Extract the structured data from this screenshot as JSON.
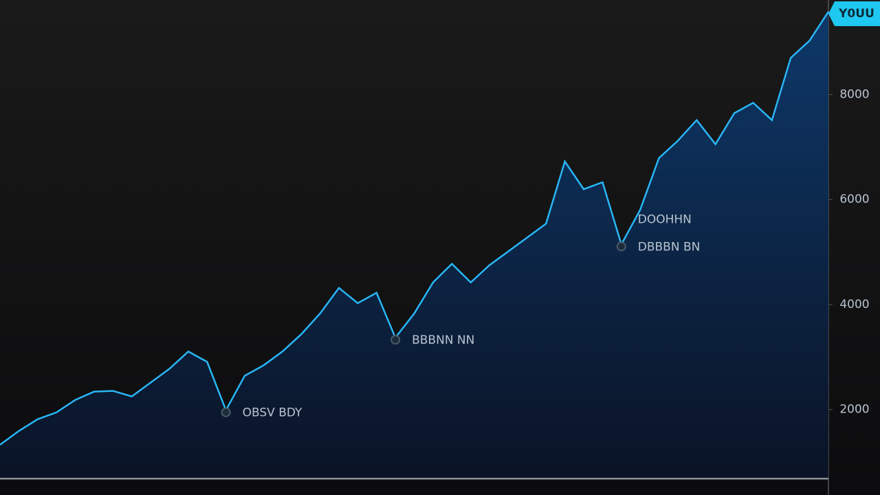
{
  "chart_data": {
    "type": "line",
    "series": [
      {
        "color": "#29b6f6",
        "values": [
          1329,
          1592,
          1816,
          1947,
          2184,
          2342,
          2355,
          2250,
          2513,
          2776,
          3105,
          2908,
          1987,
          2645,
          2842,
          3105,
          3434,
          3829,
          4316,
          4026,
          4224,
          3368,
          3829,
          4421,
          4776,
          4421,
          4750,
          5013,
          5276,
          5539,
          6724,
          6197,
          6329,
          5145,
          5803,
          6789,
          7118,
          7513,
          7053,
          7645,
          7842,
          7513,
          8697,
          9026,
          9579
        ]
      }
    ],
    "ylim": [
      700,
      9800
    ],
    "yticks": [
      2000,
      4000,
      6000,
      8000
    ],
    "current_label": "Y0UU",
    "annotations": [
      {
        "text": "OBSV BDY",
        "point": 12
      },
      {
        "text": "BBBNN NN",
        "point": 21
      },
      {
        "text": "DOOHHN",
        "point": 33
      },
      {
        "text": "DBBBN BN",
        "point": 33
      }
    ]
  }
}
